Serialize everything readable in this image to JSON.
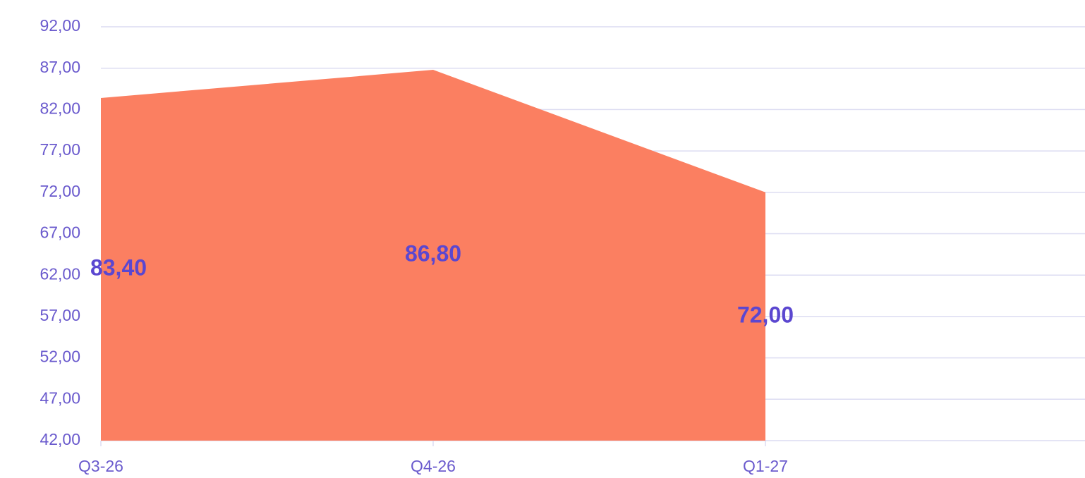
{
  "chart_data": {
    "type": "area",
    "categories": [
      "Q3-26",
      "Q4-26",
      "Q1-27"
    ],
    "values": [
      83.4,
      86.8,
      72.0
    ],
    "value_labels": [
      "83,40",
      "86,80",
      "72,00"
    ],
    "color": "#fb7f61",
    "ylim": [
      42,
      92
    ],
    "yticks": [
      {
        "value": 42,
        "label": "42,00"
      },
      {
        "value": 47,
        "label": "47,00"
      },
      {
        "value": 52,
        "label": "52,00"
      },
      {
        "value": 57,
        "label": "57,00"
      },
      {
        "value": 62,
        "label": "62,00"
      },
      {
        "value": 67,
        "label": "67,00"
      },
      {
        "value": 72,
        "label": "72,00"
      },
      {
        "value": 77,
        "label": "77,00"
      },
      {
        "value": 82,
        "label": "82,00"
      },
      {
        "value": 87,
        "label": "87,00"
      },
      {
        "value": 92,
        "label": "92,00"
      }
    ],
    "grid": true
  }
}
